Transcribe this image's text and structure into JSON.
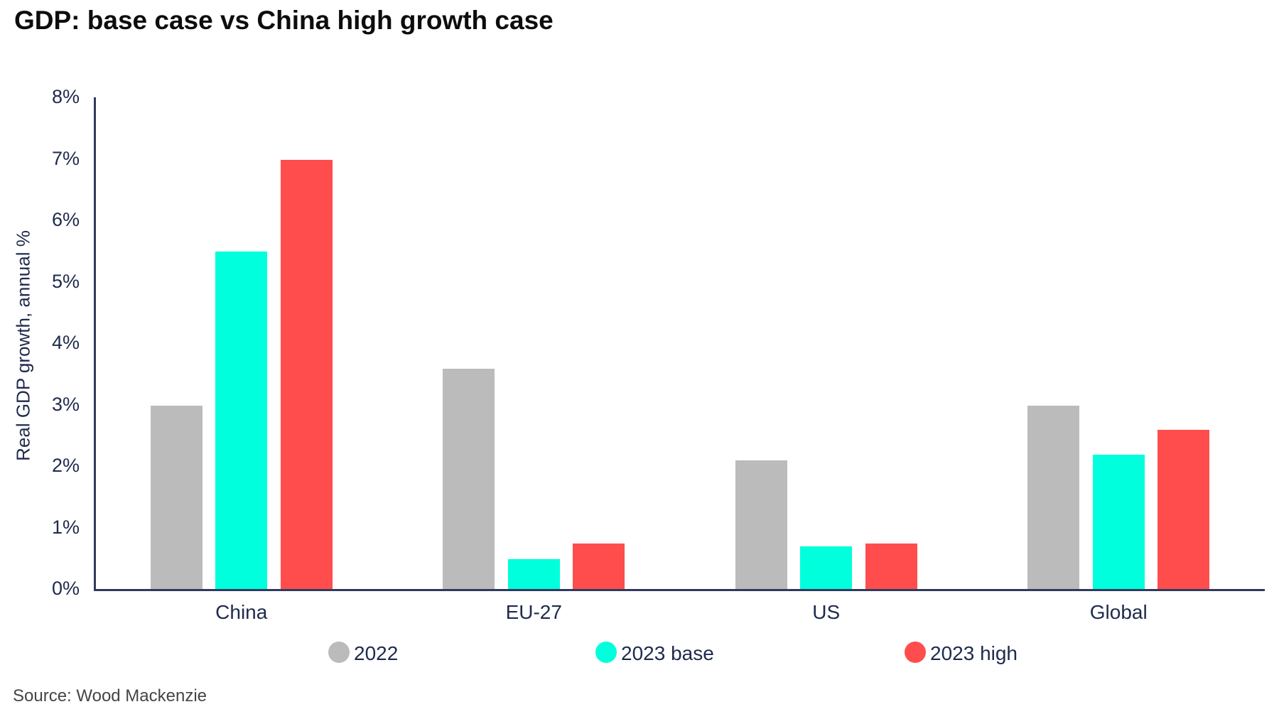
{
  "title": "GDP: base case vs China high growth case",
  "source": "Source: Wood Mackenzie",
  "colors": {
    "series_2022": "#bbbbbb",
    "series_2023_base": "#00ffdc",
    "series_2023_high": "#ff4d4d",
    "axis": "#2f3a5c",
    "text_navy": "#1f2a4c",
    "title_text": "#0d0d0d",
    "source_text": "#454545"
  },
  "chart_data": {
    "type": "bar",
    "title": "GDP: base case vs China high growth case",
    "categories": [
      "China",
      "EU-27",
      "US",
      "Global"
    ],
    "series": [
      {
        "name": "2022",
        "color": "#bbbbbb",
        "values": [
          3.0,
          3.6,
          2.1,
          3.0
        ]
      },
      {
        "name": "2023 base",
        "color": "#00ffdc",
        "values": [
          5.5,
          0.5,
          0.7,
          2.2
        ]
      },
      {
        "name": "2023 high",
        "color": "#ff4d4d",
        "values": [
          7.0,
          0.75,
          0.75,
          2.6
        ]
      }
    ],
    "xlabel": "",
    "ylabel": "Real GDP growth, annual %",
    "ylim": [
      0,
      8
    ],
    "ytick_step": 1,
    "ytick_suffix": "%",
    "grid": false,
    "legend_position": "bottom"
  }
}
